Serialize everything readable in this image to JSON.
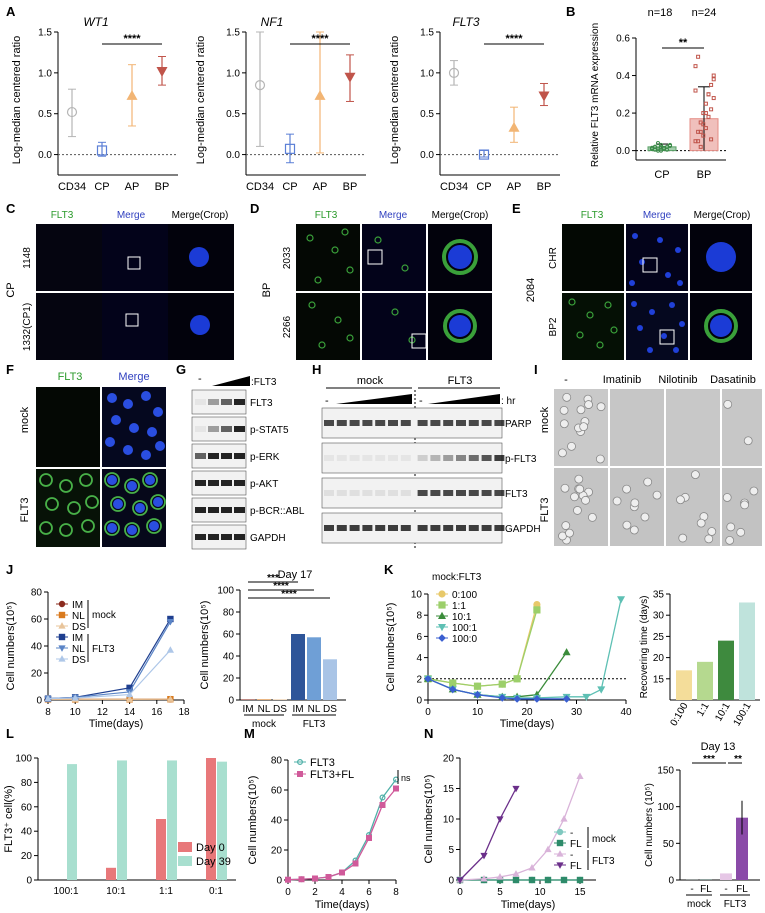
{
  "panel_letters": [
    "A",
    "B",
    "C",
    "D",
    "E",
    "F",
    "G",
    "H",
    "I",
    "J",
    "K",
    "L",
    "M",
    "N"
  ],
  "panelA": {
    "genes": [
      "WT1",
      "NF1",
      "FLT3"
    ],
    "ylabel": "Log-median centered ratio",
    "categories": [
      "CD34",
      "CP",
      "AP",
      "BP"
    ],
    "significance": "****",
    "colors": {
      "CD34": "#b5b5b5",
      "CP": "#5b7fd6",
      "AP": "#f2b574",
      "BP": "#c0544a"
    }
  },
  "panelB": {
    "ylabel": "Relative FLT3 mRNA expression",
    "n_labels": [
      "n=18",
      "n=24"
    ],
    "categories": [
      "CP",
      "BP"
    ],
    "significance": "**",
    "colors": {
      "CP": "#5aa267",
      "BP": "#e48d85"
    }
  },
  "panelC": {
    "side_label": "CP",
    "channels": [
      "FLT3",
      "Merge",
      "Merge(Crop)"
    ],
    "rows": [
      "1148",
      "1332(CP1)"
    ]
  },
  "panelD": {
    "side_label": "BP",
    "channels": [
      "FLT3",
      "Merge",
      "Merge(Crop)"
    ],
    "rows": [
      "2033",
      "2266"
    ]
  },
  "panelE": {
    "side_label": "2084",
    "channels": [
      "FLT3",
      "Merge",
      "Merge(Crop)"
    ],
    "rows": [
      "CHR",
      "BP2"
    ]
  },
  "panelF": {
    "channels": [
      "FLT3",
      "Merge"
    ],
    "rows": [
      "mock",
      "FLT3"
    ]
  },
  "panelG": {
    "top_labels": [
      "-",
      ":FLT3"
    ],
    "bands": [
      "FLT3",
      "p-STAT5",
      "p-ERK",
      "p-AKT",
      "p-BCR::ABL",
      "GAPDH"
    ]
  },
  "panelH": {
    "groups": [
      "mock",
      "FLT3"
    ],
    "dose_labels": [
      "-",
      "-",
      ": hr"
    ],
    "bands": [
      "PARP",
      "p-FLT3",
      "FLT3",
      "GAPDH"
    ]
  },
  "panelI": {
    "columns": [
      "-",
      "Imatinib",
      "Nilotinib",
      "Dasatinib"
    ],
    "rows": [
      "mock",
      "FLT3"
    ]
  },
  "panelJ": {
    "ylabel": "Cell numbers(10⁵)",
    "xlabel": "Time(days)",
    "legend_mock": [
      "IM",
      "NL",
      "DS"
    ],
    "legend_flt3": [
      "IM",
      "NL",
      "DS"
    ],
    "legend_groups": [
      "mock",
      "FLT3"
    ],
    "bar_title": "Day 17",
    "bar_ylabel": "Cell numbers(10⁵)",
    "bar_categories": [
      "IM",
      "NL",
      "DS",
      "IM",
      "NL",
      "DS"
    ],
    "bar_groups": [
      "mock",
      "FLT3"
    ],
    "sig": [
      "****",
      "****",
      "***"
    ]
  },
  "panelK": {
    "legend_title": "mock:FLT3",
    "series_names": [
      "0:100",
      "1:1",
      "10:1",
      "100:1",
      "100:0"
    ],
    "ylabel": "Cell numbers(10⁵)",
    "xlabel": "Time(days)",
    "bar_ylabel": "Recovering time (days)",
    "bar_categories": [
      "0:100",
      "1:1",
      "10:1",
      "100:1"
    ]
  },
  "panelL": {
    "ylabel": "FLT3⁺ cell(%)",
    "categories": [
      "100:1",
      "10:1",
      "1:1",
      "0:1"
    ],
    "legend": [
      "Day 0",
      "Day 39"
    ]
  },
  "panelM": {
    "ylabel": "Cell numbers(10⁵)",
    "xlabel": "Time(days)",
    "legend": [
      "FLT3",
      "FLT3+FL"
    ],
    "ns": "ns"
  },
  "panelN": {
    "ylabel": "Cell numbers(10⁵)",
    "xlabel": "Time(days)",
    "legend_items": [
      "-",
      "FL",
      "-",
      "FL"
    ],
    "legend_groups": [
      "mock",
      "FLT3"
    ],
    "bar_title": "Day 13",
    "bar_ylabel": "Cell numbers (10⁵)",
    "bar_categories": [
      "-",
      "FL",
      "-",
      "FL"
    ],
    "bar_groups": [
      "mock",
      "FLT3"
    ],
    "sig": [
      "***",
      "**"
    ]
  },
  "chart_data": [
    {
      "type": "scatter",
      "panel": "A",
      "title": "WT1",
      "categories": [
        "CD34",
        "CP",
        "AP",
        "BP"
      ],
      "values": [
        0.52,
        0.05,
        0.72,
        1.02
      ],
      "err_low": [
        0.22,
        -0.02,
        0.35,
        0.85
      ],
      "err_high": [
        0.8,
        0.15,
        1.1,
        1.2
      ],
      "ylim": [
        -0.25,
        1.5
      ]
    },
    {
      "type": "scatter",
      "panel": "A",
      "title": "NF1",
      "categories": [
        "CD34",
        "CP",
        "AP",
        "BP"
      ],
      "values": [
        0.85,
        0.07,
        0.72,
        0.95
      ],
      "err_low": [
        0.1,
        -0.1,
        0.02,
        0.65
      ],
      "err_high": [
        1.5,
        0.25,
        1.5,
        1.22
      ],
      "ylim": [
        -0.25,
        1.5
      ]
    },
    {
      "type": "scatter",
      "panel": "A",
      "title": "FLT3",
      "categories": [
        "CD34",
        "CP",
        "AP",
        "BP"
      ],
      "values": [
        1.0,
        0.0,
        0.33,
        0.72
      ],
      "err_low": [
        0.85,
        -0.03,
        0.15,
        0.6
      ],
      "err_high": [
        1.15,
        0.05,
        0.58,
        0.87
      ],
      "ylim": [
        -0.25,
        1.5
      ]
    },
    {
      "type": "bar",
      "panel": "B",
      "categories": [
        "CP",
        "BP"
      ],
      "values": [
        0.02,
        0.17
      ],
      "err": [
        0.015,
        0.17
      ],
      "ylim": [
        -0.05,
        0.6
      ]
    },
    {
      "type": "line",
      "panel": "J",
      "x": [
        8,
        10,
        14,
        17
      ],
      "series": [
        {
          "name": "IM mock",
          "values": [
            0.5,
            0.5,
            0.5,
            0.6
          ]
        },
        {
          "name": "NL mock",
          "values": [
            0.5,
            0.5,
            0.5,
            0.6
          ]
        },
        {
          "name": "DS mock",
          "values": [
            0.5,
            0.5,
            0.5,
            0.6
          ]
        },
        {
          "name": "IM FLT3",
          "values": [
            1,
            2,
            9,
            60
          ]
        },
        {
          "name": "NL FLT3",
          "values": [
            1,
            2,
            6,
            58
          ]
        },
        {
          "name": "DS FLT3",
          "values": [
            1,
            1.5,
            4,
            37
          ]
        }
      ],
      "xlim": [
        8,
        18
      ],
      "ylim": [
        0,
        80
      ]
    },
    {
      "type": "bar",
      "panel": "J",
      "categories": [
        "IM",
        "NL",
        "DS",
        "IM",
        "NL",
        "DS"
      ],
      "values": [
        0.5,
        0.5,
        0.5,
        60,
        57,
        37
      ],
      "ylim": [
        0,
        100
      ]
    },
    {
      "type": "line",
      "panel": "K",
      "x_series": true,
      "series": [
        {
          "name": "0:100",
          "x": [
            0,
            5,
            10,
            15,
            18,
            22
          ],
          "values": [
            2,
            1.6,
            1.3,
            1.5,
            2,
            9
          ]
        },
        {
          "name": "1:1",
          "x": [
            0,
            5,
            10,
            15,
            18,
            22
          ],
          "values": [
            2,
            1.6,
            1.3,
            1.5,
            2,
            8.5
          ]
        },
        {
          "name": "10:1",
          "x": [
            0,
            5,
            10,
            15,
            18,
            22,
            28
          ],
          "values": [
            2,
            1,
            0.5,
            0.3,
            0.3,
            0.5,
            4.5
          ]
        },
        {
          "name": "100:1",
          "x": [
            0,
            5,
            10,
            15,
            18,
            22,
            28,
            32,
            35,
            39
          ],
          "values": [
            2,
            1,
            0.5,
            0.3,
            0.2,
            0.2,
            0.3,
            0.3,
            1,
            9.5
          ]
        },
        {
          "name": "100:0",
          "x": [
            0,
            5,
            10,
            15,
            18,
            22,
            28
          ],
          "values": [
            2,
            1,
            0.5,
            0.2,
            0.1,
            0.1,
            0.1
          ]
        }
      ],
      "xlim": [
        0,
        40
      ],
      "ylim": [
        0,
        10
      ]
    },
    {
      "type": "bar",
      "panel": "K",
      "categories": [
        "0:100",
        "1:1",
        "10:1",
        "100:1"
      ],
      "values": [
        17,
        19,
        24,
        33
      ],
      "ylim": [
        10,
        35
      ]
    },
    {
      "type": "bar",
      "panel": "L",
      "categories": [
        "100:1",
        "10:1",
        "1:1",
        "0:1"
      ],
      "series": [
        {
          "name": "Day 0",
          "values": [
            0,
            10,
            50,
            100
          ]
        },
        {
          "name": "Day 39",
          "values": [
            95,
            98,
            98,
            97
          ]
        }
      ],
      "ylim": [
        0,
        100
      ]
    },
    {
      "type": "line",
      "panel": "M",
      "x": [
        0,
        1,
        2,
        3,
        4,
        5,
        6,
        7,
        8
      ],
      "series": [
        {
          "name": "FLT3",
          "values": [
            0.2,
            0.5,
            1,
            2,
            5,
            13,
            30,
            55,
            67
          ]
        },
        {
          "name": "FLT3+FL",
          "values": [
            0.2,
            0.5,
            1,
            2,
            5,
            11,
            28,
            50,
            61
          ]
        }
      ],
      "xlim": [
        0,
        8
      ],
      "ylim": [
        0,
        80
      ]
    },
    {
      "type": "line",
      "panel": "N",
      "series": [
        {
          "name": "- mock",
          "x": [
            0,
            3,
            5,
            7,
            9,
            11,
            13,
            15
          ],
          "values": [
            0,
            0,
            0,
            0,
            0,
            0,
            0,
            0
          ]
        },
        {
          "name": "FL mock",
          "x": [
            0,
            3,
            5,
            7,
            9,
            11,
            13,
            15
          ],
          "values": [
            0,
            0,
            0,
            0,
            0,
            0,
            0,
            0
          ]
        },
        {
          "name": "- FLT3",
          "x": [
            0,
            3,
            5,
            7,
            9,
            11,
            13,
            15
          ],
          "values": [
            0,
            0.2,
            0.5,
            1,
            2,
            5,
            10,
            17
          ]
        },
        {
          "name": "FL FLT3",
          "x": [
            0,
            3,
            5,
            7
          ],
          "values": [
            0,
            4,
            10,
            15
          ]
        }
      ],
      "xlim": [
        0,
        17
      ],
      "ylim": [
        0,
        20
      ]
    },
    {
      "type": "bar",
      "panel": "N",
      "categories": [
        "-",
        "FL",
        "-",
        "FL"
      ],
      "values": [
        0.2,
        0.3,
        9,
        85
      ],
      "ylim": [
        0,
        150
      ]
    }
  ]
}
